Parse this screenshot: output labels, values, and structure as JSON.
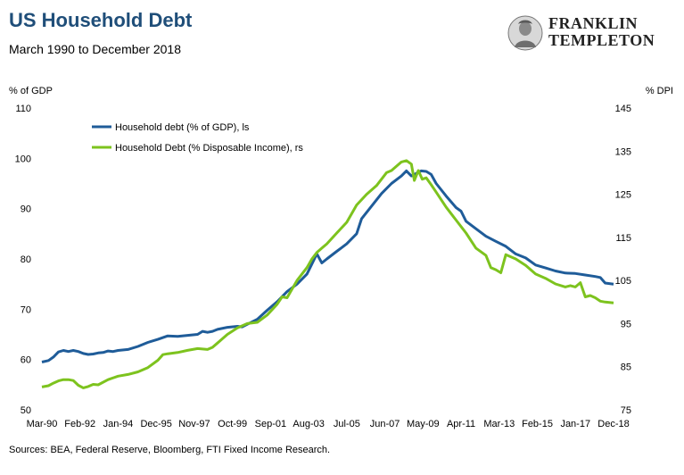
{
  "header": {
    "title": "US Household Debt",
    "subtitle": "March 1990 to December 2018",
    "logo_line1": "FRANKLIN",
    "logo_line2": "TEMPLETON"
  },
  "footer": {
    "source": "Sources: BEA, Federal Reserve, Bloomberg, FTI Fixed Income Research."
  },
  "colors": {
    "gdp_series": "#1f5c99",
    "dpi_series": "#7dc31e",
    "title": "#1f4e79"
  },
  "chart_data": {
    "type": "line",
    "title": "US Household Debt",
    "subtitle": "March 1990 to December 2018",
    "ylabel_left": "% of GDP",
    "ylabel_right": "% DPI",
    "ylim_left": [
      50,
      110
    ],
    "ylim_right": [
      75,
      145
    ],
    "yticks_left": [
      50,
      60,
      70,
      80,
      90,
      100,
      110
    ],
    "yticks_right": [
      75,
      85,
      95,
      105,
      115,
      125,
      135,
      145
    ],
    "xlim": [
      1990.17,
      2018.92
    ],
    "xticks": [
      "Mar-90",
      "Feb-92",
      "Jan-94",
      "Dec-95",
      "Nov-97",
      "Oct-99",
      "Sep-01",
      "Aug-03",
      "Jul-05",
      "Jun-07",
      "May-09",
      "Apr-11",
      "Mar-13",
      "Feb-15",
      "Jan-17",
      "Dec-18"
    ],
    "grid": false,
    "legend_position": "top-left",
    "series": [
      {
        "name": "Household debt (% of GDP), ls",
        "axis": "left",
        "color": "#1f5c99",
        "points": [
          [
            1990.17,
            59.5
          ],
          [
            1990.5,
            59.8
          ],
          [
            1990.75,
            60.5
          ],
          [
            1991.0,
            61.5
          ],
          [
            1991.25,
            61.8
          ],
          [
            1991.5,
            61.6
          ],
          [
            1991.75,
            61.8
          ],
          [
            1992.0,
            61.6
          ],
          [
            1992.25,
            61.2
          ],
          [
            1992.5,
            61.0
          ],
          [
            1992.75,
            61.1
          ],
          [
            1993.0,
            61.3
          ],
          [
            1993.25,
            61.4
          ],
          [
            1993.5,
            61.7
          ],
          [
            1993.75,
            61.6
          ],
          [
            1994.0,
            61.8
          ],
          [
            1994.5,
            62.0
          ],
          [
            1995.0,
            62.6
          ],
          [
            1995.5,
            63.4
          ],
          [
            1996.0,
            64.0
          ],
          [
            1996.5,
            64.7
          ],
          [
            1997.0,
            64.6
          ],
          [
            1997.5,
            64.8
          ],
          [
            1998.0,
            65.0
          ],
          [
            1998.25,
            65.6
          ],
          [
            1998.5,
            65.4
          ],
          [
            1998.75,
            65.6
          ],
          [
            1999.0,
            66.0
          ],
          [
            1999.5,
            66.4
          ],
          [
            2000.0,
            66.6
          ],
          [
            2000.25,
            66.5
          ],
          [
            2000.5,
            67.0
          ],
          [
            2001.0,
            68.0
          ],
          [
            2001.5,
            69.8
          ],
          [
            2002.0,
            71.5
          ],
          [
            2002.5,
            73.5
          ],
          [
            2003.0,
            75.0
          ],
          [
            2003.5,
            77.0
          ],
          [
            2003.75,
            79.0
          ],
          [
            2004.0,
            81.0
          ],
          [
            2004.25,
            79.2
          ],
          [
            2004.5,
            80.0
          ],
          [
            2005.0,
            81.5
          ],
          [
            2005.5,
            83.0
          ],
          [
            2006.0,
            85.0
          ],
          [
            2006.25,
            88.0
          ],
          [
            2006.75,
            90.5
          ],
          [
            2007.25,
            93.0
          ],
          [
            2007.75,
            95.0
          ],
          [
            2008.25,
            96.5
          ],
          [
            2008.5,
            97.5
          ],
          [
            2008.75,
            96.5
          ],
          [
            2009.0,
            97.0
          ],
          [
            2009.25,
            97.5
          ],
          [
            2009.5,
            97.4
          ],
          [
            2009.75,
            96.8
          ],
          [
            2010.0,
            95.0
          ],
          [
            2010.5,
            92.5
          ],
          [
            2011.0,
            90.2
          ],
          [
            2011.25,
            89.5
          ],
          [
            2011.5,
            87.5
          ],
          [
            2012.0,
            86.0
          ],
          [
            2012.5,
            84.5
          ],
          [
            2013.0,
            83.5
          ],
          [
            2013.5,
            82.5
          ],
          [
            2014.0,
            81.0
          ],
          [
            2014.5,
            80.2
          ],
          [
            2015.0,
            78.8
          ],
          [
            2015.5,
            78.2
          ],
          [
            2016.0,
            77.6
          ],
          [
            2016.5,
            77.2
          ],
          [
            2017.0,
            77.1
          ],
          [
            2017.5,
            76.8
          ],
          [
            2018.0,
            76.5
          ],
          [
            2018.25,
            76.3
          ],
          [
            2018.5,
            75.2
          ],
          [
            2018.92,
            75.0
          ]
        ]
      },
      {
        "name": "Household Debt (% Disposable Income), rs",
        "axis": "right",
        "color": "#7dc31e",
        "points": [
          [
            1990.17,
            80.3
          ],
          [
            1990.5,
            80.6
          ],
          [
            1990.75,
            81.2
          ],
          [
            1991.0,
            81.7
          ],
          [
            1991.25,
            82.0
          ],
          [
            1991.5,
            82.0
          ],
          [
            1991.75,
            81.8
          ],
          [
            1992.0,
            80.7
          ],
          [
            1992.25,
            80.1
          ],
          [
            1992.5,
            80.4
          ],
          [
            1992.75,
            80.9
          ],
          [
            1993.0,
            80.8
          ],
          [
            1993.5,
            82.0
          ],
          [
            1994.0,
            82.8
          ],
          [
            1994.5,
            83.2
          ],
          [
            1995.0,
            83.8
          ],
          [
            1995.5,
            84.8
          ],
          [
            1996.0,
            86.5
          ],
          [
            1996.25,
            87.8
          ],
          [
            1996.5,
            88.0
          ],
          [
            1997.0,
            88.3
          ],
          [
            1997.5,
            88.8
          ],
          [
            1998.0,
            89.2
          ],
          [
            1998.5,
            89.0
          ],
          [
            1998.75,
            89.5
          ],
          [
            1999.0,
            90.5
          ],
          [
            1999.5,
            92.5
          ],
          [
            2000.0,
            94.0
          ],
          [
            2000.5,
            95.0
          ],
          [
            2001.0,
            95.3
          ],
          [
            2001.5,
            97.0
          ],
          [
            2002.0,
            99.5
          ],
          [
            2002.25,
            101.2
          ],
          [
            2002.5,
            101.0
          ],
          [
            2002.75,
            103.0
          ],
          [
            2003.0,
            105.0
          ],
          [
            2003.5,
            108.0
          ],
          [
            2003.75,
            110.0
          ],
          [
            2004.0,
            111.5
          ],
          [
            2004.25,
            112.5
          ],
          [
            2004.5,
            113.5
          ],
          [
            2005.0,
            116.0
          ],
          [
            2005.5,
            118.5
          ],
          [
            2006.0,
            122.5
          ],
          [
            2006.5,
            125.0
          ],
          [
            2007.0,
            127.0
          ],
          [
            2007.5,
            130.0
          ],
          [
            2007.75,
            130.5
          ],
          [
            2008.25,
            132.5
          ],
          [
            2008.5,
            132.8
          ],
          [
            2008.75,
            132.0
          ],
          [
            2008.9,
            128.2
          ],
          [
            2009.1,
            130.5
          ],
          [
            2009.3,
            128.5
          ],
          [
            2009.5,
            128.8
          ],
          [
            2009.75,
            127.2
          ],
          [
            2010.0,
            125.5
          ],
          [
            2010.5,
            122.0
          ],
          [
            2011.0,
            119.0
          ],
          [
            2011.5,
            116.0
          ],
          [
            2012.0,
            112.5
          ],
          [
            2012.5,
            110.8
          ],
          [
            2012.75,
            108.0
          ],
          [
            2013.0,
            107.5
          ],
          [
            2013.25,
            106.8
          ],
          [
            2013.5,
            111.0
          ],
          [
            2014.0,
            110.0
          ],
          [
            2014.5,
            108.5
          ],
          [
            2015.0,
            106.5
          ],
          [
            2015.5,
            105.5
          ],
          [
            2016.0,
            104.2
          ],
          [
            2016.5,
            103.5
          ],
          [
            2016.75,
            103.8
          ],
          [
            2017.0,
            103.5
          ],
          [
            2017.25,
            104.5
          ],
          [
            2017.5,
            101.2
          ],
          [
            2017.75,
            101.5
          ],
          [
            2018.0,
            101.0
          ],
          [
            2018.25,
            100.2
          ],
          [
            2018.5,
            100.0
          ],
          [
            2018.92,
            99.8
          ]
        ]
      }
    ]
  }
}
